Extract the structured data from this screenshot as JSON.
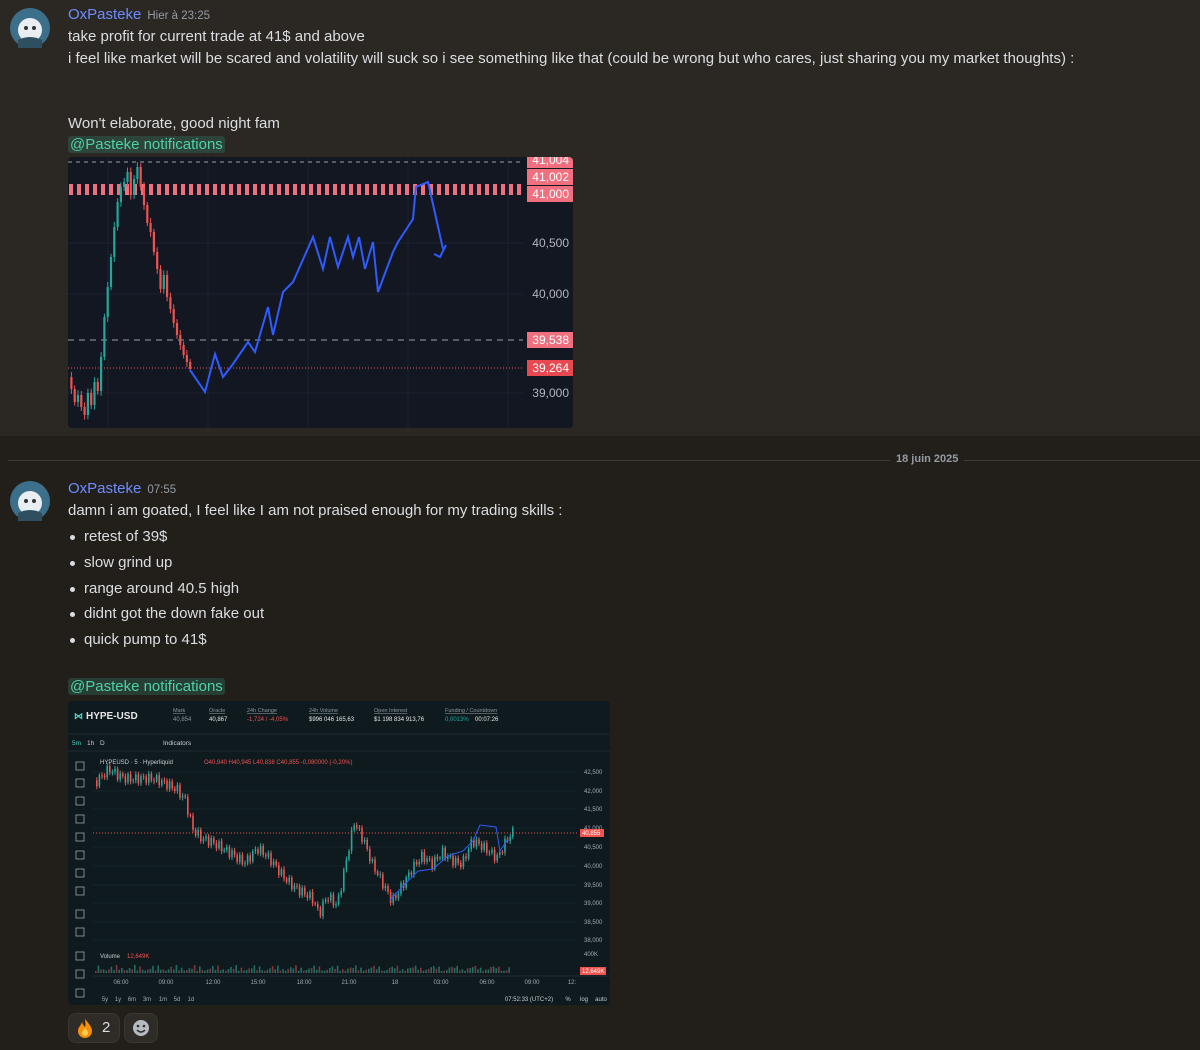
{
  "date_divider": "18 juin 2025",
  "messages": [
    {
      "author": "OxPasteke",
      "timestamp": "Hier à 23:25",
      "lines": [
        "take profit for current trade at 41$ and above",
        "i feel like market will be scared and volatility will suck so i see something like that (could be wrong but who cares, just sharing you my market thoughts) :",
        "Won't elaborate, good night fam"
      ],
      "mention": "@Pasteke notifications",
      "image": {
        "price_labels": [
          "41,004",
          "41,002",
          "41,000",
          "40,500",
          "40,000",
          "39,538",
          "39,264",
          "39,000"
        ]
      }
    },
    {
      "author": "OxPasteke",
      "timestamp": "07:55",
      "lines": [
        "damn i am goated, I feel like I am not praised enough for my trading skills :"
      ],
      "bullets": [
        "retest of 39$",
        "slow grind up",
        "range around 40.5 high",
        "didnt got the down fake out",
        "quick pump to 41$"
      ],
      "mention": "@Pasteke notifications",
      "image": {
        "symbol": "HYPE-USD",
        "stats": [
          {
            "label": "Mark",
            "value": "40,854"
          },
          {
            "label": "Oracle",
            "value": "40,867"
          },
          {
            "label": "24h Change",
            "value": "-1,724 / -4,05%"
          },
          {
            "label": "24h Volume",
            "value": "$996 046 165,63"
          },
          {
            "label": "Open Interest",
            "value": "$1 198 834 913,76"
          },
          {
            "label": "Funding / Countdown",
            "value": "0,0013%",
            "countdown": "00:07:26"
          }
        ],
        "timeframes": [
          "5m",
          "1h",
          "D"
        ],
        "indicators": "Indicators",
        "legend_title": "HYPEUSD · 5 · Hyperliquid",
        "ohlc": "O40,940 H40,945 L40,838 C40,855 -0,080000 (-0,20%)",
        "price_labels": [
          "42,500",
          "42,000",
          "41,500",
          "41,000",
          "40,500",
          "40,000",
          "39,500",
          "39,000",
          "38,500",
          "38,000"
        ],
        "last_price": "40,855",
        "volume_label": "Volume",
        "volume_value": "12,649K",
        "volume_axis": "400K",
        "volume_last": "12,649K",
        "time_labels": [
          "06:00",
          "09:00",
          "12:00",
          "15:00",
          "18:00",
          "21:00",
          "18",
          "03:00",
          "06:00",
          "09:00",
          "12:"
        ],
        "ranges": [
          "5y",
          "1y",
          "6m",
          "3m",
          "1m",
          "5d",
          "1d"
        ],
        "clock": "07:52:33 (UTC+2)",
        "scale_options": [
          "%",
          "log",
          "auto"
        ]
      },
      "reactions": [
        {
          "count": 2
        }
      ]
    }
  ]
}
